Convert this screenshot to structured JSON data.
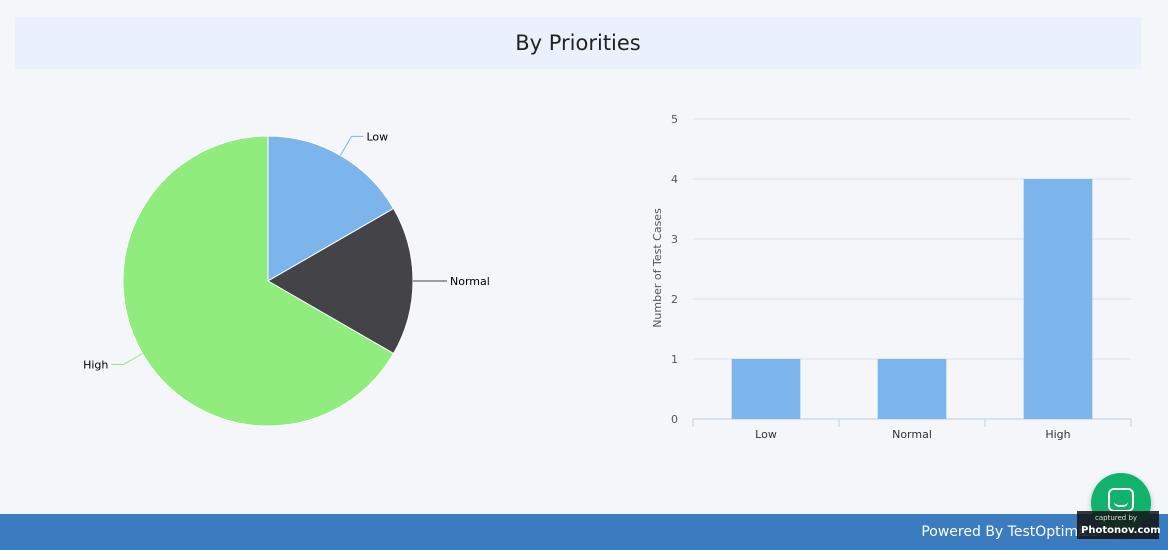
{
  "header": {
    "title": "By Priorities"
  },
  "chart_data": [
    {
      "type": "pie",
      "categories": [
        "Low",
        "Normal",
        "High"
      ],
      "values": [
        1,
        1,
        4
      ],
      "colors": [
        "#7cb4ec",
        "#434348",
        "#90ed7d"
      ]
    },
    {
      "type": "bar",
      "categories": [
        "Low",
        "Normal",
        "High"
      ],
      "values": [
        1,
        1,
        4
      ],
      "ylabel": "Number of Test Cases",
      "ylim": [
        0,
        5
      ],
      "yticks": [
        "0",
        "1",
        "2",
        "3",
        "4",
        "5"
      ],
      "grid": true,
      "color": "#7cb4ec"
    }
  ],
  "footer": {
    "powered_text": "Powered By TestOptimize"
  },
  "badge": {
    "small_text": "captured by",
    "big_text": "Photonov.com",
    "icon": "chat-icon"
  }
}
